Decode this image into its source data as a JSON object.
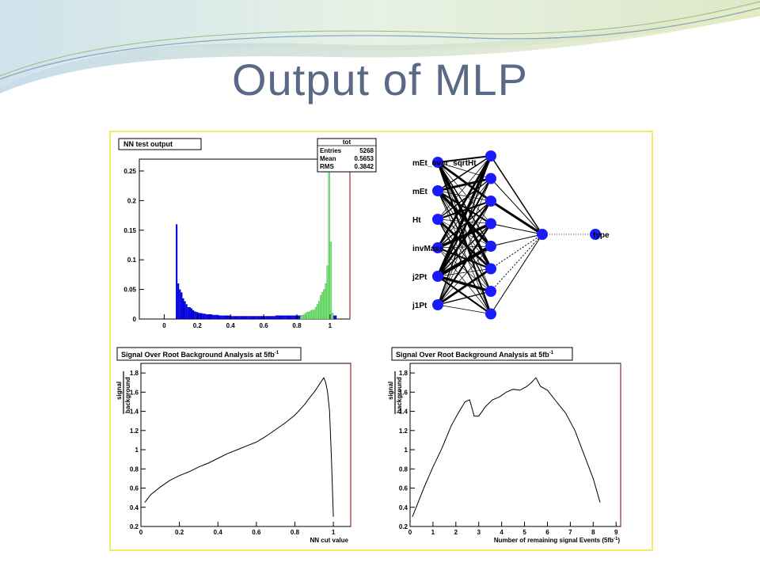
{
  "slide": {
    "title": "Output of MLP"
  },
  "colors": {
    "title": "#5a6a86",
    "frame": "#f0ec66",
    "signal_hist": "#7dea7d",
    "background_hist": "#0000dd",
    "node": "#1a1aff"
  },
  "hist_panel": {
    "title": "NN test output",
    "stats": {
      "name": "tot",
      "rows": [
        {
          "label": "Entries",
          "value": "5268"
        },
        {
          "label": "Mean",
          "value": "0.5653"
        },
        {
          "label": "RMS",
          "value": "0.3842"
        }
      ]
    }
  },
  "network": {
    "inputs": [
      "mEt_over_sqrtHt",
      "mEt",
      "Ht",
      "invMass",
      "j2Pt",
      "j1Pt"
    ],
    "hidden_count": 8,
    "output": "type"
  },
  "sig_panel_1": {
    "title": "Signal Over Root Background Analysis at 5fb",
    "title_sup": "-1",
    "ylabel_top": "signal",
    "ylabel_bottom": "background",
    "xlabel": "NN cut value"
  },
  "sig_panel_2": {
    "title": "Signal Over Root Background Analysis at 5fb",
    "title_sup": "-1",
    "ylabel_top": "signal",
    "ylabel_bottom": "background",
    "xlabel": "Number of remaining signal Events (5fb",
    "xlabel_sup": "-1",
    "xlabel_end": ")"
  },
  "chart_data": [
    {
      "type": "bar",
      "title": "NN test output",
      "xlim": [
        -0.15,
        1.12
      ],
      "ylim": [
        0,
        0.27
      ],
      "xticks": [
        "0",
        "0.2",
        "0.4",
        "0.6",
        "0.8",
        "1"
      ],
      "yticks": [
        "0",
        "0.05",
        "0.1",
        "0.15",
        "0.2",
        "0.25"
      ],
      "bin_start": 0.06,
      "bin_width": 0.01,
      "series": [
        {
          "values": [
            0,
            0.16,
            0.06,
            0.05,
            0.045,
            0.035,
            0.03,
            0.025,
            0.02,
            0.02,
            0.018,
            0.015,
            0.013,
            0.012,
            0.011,
            0.01,
            0.01,
            0.009,
            0.009,
            0.008,
            0.008,
            0.008,
            0.008,
            0.007,
            0.007,
            0.007,
            0.007,
            0.006,
            0.006,
            0.006,
            0.006,
            0.006,
            0.006,
            0.006,
            0.005,
            0.005,
            0.005,
            0.005,
            0.005,
            0.005,
            0.005,
            0.005,
            0.005,
            0.005,
            0.005,
            0.005,
            0.005,
            0.005,
            0.005,
            0.005,
            0.005,
            0.005,
            0.005,
            0.005,
            0.005,
            0.005,
            0.005,
            0.005,
            0.005,
            0.005,
            0.005,
            0.006,
            0.006,
            0.006,
            0.006,
            0.006,
            0.006,
            0.006,
            0.006,
            0.006,
            0.006,
            0.006,
            0.006,
            0.006,
            0.006,
            0.006,
            0.006,
            0.006,
            0.006,
            0.007,
            0.007,
            0.007,
            0.007,
            0.007,
            0.007,
            0.007,
            0.007,
            0.007,
            0.007,
            0.007,
            0.007,
            0.007,
            0.007,
            0.007,
            0.006,
            0.006,
            0.006,
            0.006
          ]
        },
        {
          "x": [
            0.82,
            0.83,
            0.84,
            0.85,
            0.86,
            0.87,
            0.88,
            0.89,
            0.9,
            0.91,
            0.92,
            0.93,
            0.94,
            0.95,
            0.96,
            0.97,
            0.98,
            0.99,
            1.0,
            1.01
          ],
          "values": [
            0.005,
            0.006,
            0.008,
            0.01,
            0.012,
            0.012,
            0.014,
            0.015,
            0.015,
            0.02,
            0.025,
            0.03,
            0.04,
            0.045,
            0.05,
            0.06,
            0.09,
            0.25,
            0.13,
            0.01
          ]
        }
      ]
    },
    {
      "type": "line",
      "title": "Signal Over Root Background Analysis at 5fb-1",
      "xlabel": "NN cut value",
      "xlim": [
        0,
        1.09
      ],
      "ylim": [
        0.2,
        1.9
      ],
      "xticks": [
        "0",
        "0.2",
        "0.4",
        "0.6",
        "0.8",
        "1"
      ],
      "yticks": [
        "0.2",
        "0.4",
        "0.6",
        "0.8",
        "1",
        "1.2",
        "1.4",
        "1.6",
        "1.8"
      ],
      "x": [
        0.02,
        0.05,
        0.1,
        0.15,
        0.2,
        0.25,
        0.3,
        0.35,
        0.4,
        0.45,
        0.5,
        0.55,
        0.6,
        0.65,
        0.7,
        0.75,
        0.8,
        0.85,
        0.88,
        0.9,
        0.92,
        0.94,
        0.95,
        0.96,
        0.97,
        0.98,
        0.99,
        1.0
      ],
      "y": [
        0.45,
        0.53,
        0.61,
        0.68,
        0.73,
        0.77,
        0.82,
        0.86,
        0.91,
        0.96,
        1.0,
        1.04,
        1.08,
        1.14,
        1.21,
        1.28,
        1.36,
        1.47,
        1.55,
        1.6,
        1.66,
        1.72,
        1.75,
        1.7,
        1.6,
        1.4,
        0.9,
        0.3
      ]
    },
    {
      "type": "line",
      "title": "Signal Over Root Background Analysis at 5fb-1",
      "xlabel": "Number of remaining signal Events (5fb-1)",
      "xlim": [
        0,
        9.2
      ],
      "ylim": [
        0.2,
        1.9
      ],
      "xticks": [
        "0",
        "1",
        "2",
        "3",
        "4",
        "5",
        "6",
        "7",
        "8",
        "9"
      ],
      "yticks": [
        "0.2",
        "0.4",
        "0.6",
        "0.8",
        "1",
        "1.2",
        "1.4",
        "1.6",
        "1.8"
      ],
      "x": [
        0.1,
        0.3,
        0.6,
        1.0,
        1.4,
        1.8,
        2.1,
        2.4,
        2.6,
        2.8,
        3.0,
        3.3,
        3.6,
        3.9,
        4.2,
        4.5,
        4.8,
        5.1,
        5.3,
        5.5,
        5.7,
        6.0,
        6.4,
        6.8,
        7.2,
        7.6,
        8.0,
        8.3
      ],
      "y": [
        0.3,
        0.42,
        0.6,
        0.82,
        1.02,
        1.25,
        1.38,
        1.5,
        1.52,
        1.35,
        1.35,
        1.45,
        1.52,
        1.55,
        1.6,
        1.63,
        1.62,
        1.66,
        1.7,
        1.75,
        1.66,
        1.62,
        1.5,
        1.38,
        1.2,
        0.95,
        0.7,
        0.45
      ]
    }
  ]
}
